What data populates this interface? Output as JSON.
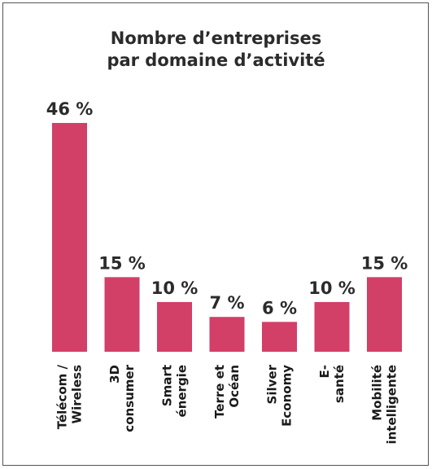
{
  "chart_data": {
    "type": "bar",
    "title_lines": [
      "Nombre d’entreprises",
      "par domaine d’activité"
    ],
    "categories": [
      [
        "Télécom /",
        "Wireless"
      ],
      [
        "3D",
        "consumer"
      ],
      [
        "Smart",
        "énergie"
      ],
      [
        "Terre et",
        "Océan"
      ],
      [
        "Silver",
        "Economy"
      ],
      [
        "E-",
        "santé"
      ],
      [
        "Mobilité",
        "intelligente"
      ]
    ],
    "values": [
      46,
      15,
      10,
      7,
      6,
      10,
      15
    ],
    "value_labels": [
      "46 %",
      "15 %",
      "10 %",
      "7 %",
      "6 %",
      "10 %",
      "15 %"
    ],
    "unit": "%",
    "ylim": [
      0,
      46
    ],
    "grid": false,
    "colors": {
      "bar": "#d23f67",
      "text": "#2b2b2b",
      "border": "#555555"
    }
  }
}
